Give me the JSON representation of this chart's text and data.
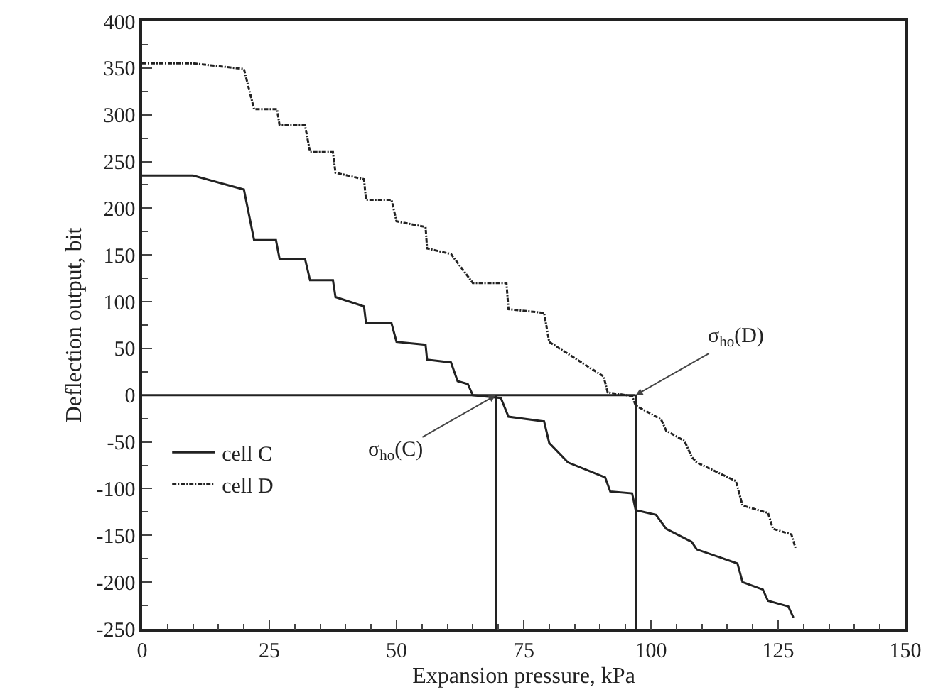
{
  "chart_data": {
    "type": "line",
    "xlabel": "Expansion pressure, kPa",
    "ylabel": "Deflection output, bit",
    "xlim": [
      0,
      150
    ],
    "xticks": [
      0,
      25,
      50,
      75,
      100,
      125,
      150
    ],
    "ylim": [
      -250,
      400
    ],
    "yticks": [
      -250,
      -200,
      -150,
      -100,
      -50,
      0,
      50,
      100,
      150,
      200,
      250,
      300,
      350,
      400
    ],
    "grid": false,
    "legend": "bottom left",
    "marker": "none",
    "series": [
      {
        "name": "cell C",
        "color": "#222222",
        "line_style": "solid",
        "x": [
          0,
          10,
          20,
          22,
          26.3,
          27,
          32,
          33,
          37.5,
          38,
          43.6,
          44,
          49,
          50,
          55.7,
          56,
          60.7,
          62,
          64,
          65,
          70.5,
          72,
          79,
          80,
          83.7,
          91,
          92,
          96.3,
          97,
          101,
          103,
          108,
          109,
          117,
          118,
          122,
          123,
          127,
          128
        ],
        "values": [
          235,
          235,
          220,
          166,
          166,
          146,
          146,
          123,
          123,
          105,
          95,
          77,
          77,
          57,
          54,
          38,
          35,
          15,
          12,
          0,
          -3,
          -23,
          -28,
          -51,
          -72,
          -88,
          -103,
          -105,
          -123,
          -128,
          -143,
          -157,
          -165,
          -180,
          -200,
          -208,
          -220,
          -226,
          -238
        ]
      },
      {
        "name": "cell D",
        "color": "#222222",
        "line_style": "dotted",
        "x": [
          0,
          10,
          20,
          22,
          26.5,
          27,
          32,
          33,
          37.5,
          38,
          43.6,
          44,
          49,
          50,
          55.7,
          56,
          60.7,
          65,
          71.6,
          72,
          79,
          80,
          90.7,
          91.5,
          96.3,
          97,
          102,
          103,
          106.6,
          108,
          109,
          116.7,
          118,
          123,
          124,
          127.6,
          128.5
        ],
        "values": [
          355,
          355,
          349,
          306,
          306,
          289,
          289,
          260,
          260,
          238,
          231,
          209,
          209,
          186,
          180,
          157,
          151,
          120,
          120,
          92,
          88,
          57,
          20,
          3,
          -1,
          -11,
          -26,
          -38,
          -49,
          -66,
          -72,
          -92,
          -118,
          -126,
          -143,
          -149,
          -165
        ]
      }
    ],
    "ref_lines": [
      {
        "axis": "y",
        "value": 0
      },
      {
        "axis": "x",
        "value": 69.5
      },
      {
        "axis": "x",
        "value": 97
      }
    ],
    "annotations": [
      {
        "text": "σ$_{ho}$(C)",
        "x": 69.5,
        "y": 0
      },
      {
        "text": "σ$_{ho}$(D)",
        "x": 97,
        "y": 0
      }
    ]
  }
}
